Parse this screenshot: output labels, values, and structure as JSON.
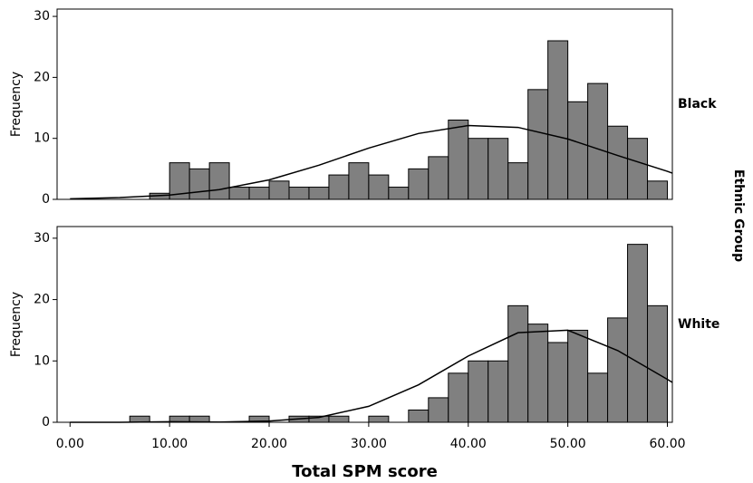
{
  "chart_data": [
    {
      "type": "histogram",
      "facet_title": "Ethnic Group",
      "facet_label": "Black",
      "ylabel": "Frequency",
      "bins": [
        8,
        10,
        12,
        14,
        16,
        18,
        20,
        22,
        24,
        26,
        28,
        30,
        32,
        34,
        36,
        38,
        40,
        42,
        44,
        46,
        48,
        50,
        52,
        54,
        56,
        58,
        60
      ],
      "values": [
        1,
        6,
        5,
        6,
        2,
        2,
        3,
        2,
        2,
        4,
        6,
        4,
        2,
        5,
        7,
        13,
        10,
        10,
        6,
        18,
        26,
        16,
        19,
        12,
        10,
        3
      ],
      "color": "#808080",
      "curve": {
        "x": [
          0,
          5,
          10,
          15,
          20,
          25,
          30,
          35,
          40,
          45,
          50,
          55,
          60,
          60.5
        ],
        "values": [
          0.1,
          0.3,
          0.7,
          1.6,
          3.2,
          5.6,
          8.4,
          10.8,
          12.1,
          11.8,
          9.9,
          7.2,
          4.6,
          4.3
        ]
      },
      "xlim": [
        -1.3,
        60.5
      ],
      "ylim": [
        0,
        31.2
      ],
      "yticks": [
        0,
        10,
        20,
        30
      ]
    },
    {
      "type": "histogram",
      "facet_label": "White",
      "ylabel": "Frequency",
      "xlabel": "Total SPM score",
      "bins": [
        6,
        8,
        10,
        12,
        14,
        16,
        18,
        20,
        22,
        24,
        26,
        28,
        30,
        32,
        34,
        36,
        38,
        40,
        42,
        44,
        46,
        48,
        50,
        52,
        54,
        56,
        58,
        60
      ],
      "values": [
        1,
        0,
        1,
        1,
        0,
        0,
        1,
        0,
        1,
        1,
        1,
        0,
        1,
        0,
        2,
        4,
        8,
        10,
        10,
        19,
        16,
        13,
        15,
        8,
        17,
        29,
        19
      ],
      "color": "#808080",
      "curve": {
        "x": [
          0,
          5,
          10,
          15,
          20,
          25,
          30,
          35,
          40,
          45,
          50,
          55,
          60,
          60.5
        ],
        "values": [
          0,
          0,
          0.1,
          0.04,
          0.2,
          0.8,
          2.6,
          6.1,
          10.8,
          14.6,
          15.0,
          11.7,
          7.0,
          6.5
        ]
      },
      "xlim": [
        -1.3,
        60.5
      ],
      "ylim": [
        0,
        31.9
      ],
      "yticks": [
        0,
        10,
        20,
        30
      ],
      "xticks": [
        {
          "value": 0,
          "label": "0.00"
        },
        {
          "value": 10,
          "label": "10.00"
        },
        {
          "value": 20,
          "label": "20.00"
        },
        {
          "value": 30,
          "label": "30.00"
        },
        {
          "value": 40,
          "label": "40.00"
        },
        {
          "value": 50,
          "label": "50.00"
        },
        {
          "value": 60,
          "label": "60.00"
        }
      ]
    }
  ]
}
